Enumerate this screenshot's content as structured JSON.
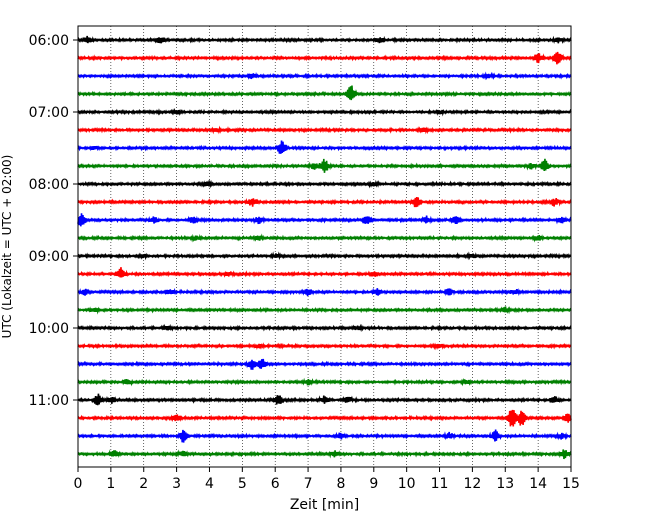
{
  "chart_data": {
    "type": "line",
    "title": "",
    "xlabel": "Zeit  [min]",
    "ylabel": "UTC (Lokalzeit = UTC + 02:00)",
    "xlim": [
      0,
      15
    ],
    "x_ticks": [
      "0",
      "1",
      "2",
      "3",
      "4",
      "5",
      "6",
      "7",
      "8",
      "9",
      "10",
      "11",
      "12",
      "13",
      "14",
      "15"
    ],
    "y_ticks": [
      {
        "label": "06:00",
        "trace": 0
      },
      {
        "label": "07:00",
        "trace": 4
      },
      {
        "label": "08:00",
        "trace": 8
      },
      {
        "label": "09:00",
        "trace": 12
      },
      {
        "label": "10:00",
        "trace": 16
      },
      {
        "label": "11:00",
        "trace": 20
      }
    ],
    "grid": {
      "x": true,
      "y": false,
      "style": "dotted"
    },
    "colors": [
      "#000000",
      "#ff0000",
      "#0000ff",
      "#008000"
    ],
    "series": [
      {
        "start": "06:00",
        "color": "#000000",
        "events": [
          [
            0.3,
            0.6
          ],
          [
            2.5,
            0.5
          ],
          [
            9.2,
            0.5
          ],
          [
            14.6,
            0.5
          ]
        ]
      },
      {
        "start": "06:15",
        "color": "#ff0000",
        "events": [
          [
            14.0,
            0.8
          ],
          [
            14.6,
            1.1
          ]
        ]
      },
      {
        "start": "06:30",
        "color": "#0000ff",
        "events": [
          [
            5.3,
            0.4
          ],
          [
            12.5,
            0.3
          ]
        ]
      },
      {
        "start": "06:45",
        "color": "#008000",
        "events": [
          [
            8.3,
            1.6
          ]
        ]
      },
      {
        "start": "07:00",
        "color": "#000000",
        "events": [
          [
            3.0,
            0.3
          ],
          [
            11.0,
            0.3
          ]
        ]
      },
      {
        "start": "07:15",
        "color": "#ff0000",
        "events": [
          [
            4.2,
            0.3
          ],
          [
            10.5,
            0.3
          ]
        ]
      },
      {
        "start": "07:30",
        "color": "#0000ff",
        "events": [
          [
            6.2,
            1.3
          ],
          [
            0.5,
            0.3
          ]
        ]
      },
      {
        "start": "07:45",
        "color": "#008000",
        "events": [
          [
            7.2,
            0.6
          ],
          [
            7.5,
            1.3
          ],
          [
            14.2,
            1.1
          ],
          [
            13.8,
            0.5
          ]
        ]
      },
      {
        "start": "08:00",
        "color": "#000000",
        "events": [
          [
            3.9,
            0.3
          ],
          [
            9.0,
            0.3
          ]
        ]
      },
      {
        "start": "08:15",
        "color": "#ff0000",
        "events": [
          [
            5.3,
            0.8
          ],
          [
            10.3,
            1.0
          ],
          [
            14.5,
            0.7
          ]
        ]
      },
      {
        "start": "08:30",
        "color": "#0000ff",
        "events": [
          [
            0.1,
            1.1
          ],
          [
            2.3,
            0.6
          ],
          [
            3.5,
            0.7
          ],
          [
            5.5,
            0.7
          ],
          [
            8.8,
            0.8
          ],
          [
            11.5,
            0.8
          ],
          [
            10.6,
            0.6
          ],
          [
            14.7,
            0.6
          ]
        ]
      },
      {
        "start": "08:45",
        "color": "#008000",
        "events": [
          [
            3.6,
            0.4
          ],
          [
            5.5,
            0.4
          ],
          [
            14.0,
            0.5
          ]
        ]
      },
      {
        "start": "09:00",
        "color": "#000000",
        "events": [
          [
            2.0,
            0.3
          ],
          [
            6.0,
            0.3
          ],
          [
            12.0,
            0.3
          ]
        ]
      },
      {
        "start": "09:15",
        "color": "#ff0000",
        "events": [
          [
            1.3,
            1.0
          ],
          [
            4.6,
            0.4
          ],
          [
            9.0,
            0.4
          ]
        ]
      },
      {
        "start": "09:30",
        "color": "#0000ff",
        "events": [
          [
            0.2,
            0.6
          ],
          [
            2.8,
            0.5
          ],
          [
            7.0,
            0.6
          ],
          [
            9.1,
            0.6
          ],
          [
            11.3,
            0.6
          ],
          [
            13.3,
            0.5
          ]
        ]
      },
      {
        "start": "09:45",
        "color": "#008000",
        "events": [
          [
            0.5,
            0.4
          ],
          [
            13.0,
            0.4
          ]
        ]
      },
      {
        "start": "10:00",
        "color": "#000000",
        "events": [
          [
            2.7,
            0.3
          ],
          [
            8.5,
            0.3
          ]
        ]
      },
      {
        "start": "10:15",
        "color": "#ff0000",
        "events": [
          [
            5.5,
            0.3
          ],
          [
            11.0,
            0.3
          ]
        ]
      },
      {
        "start": "10:30",
        "color": "#0000ff",
        "events": [
          [
            5.3,
            1.0
          ],
          [
            5.6,
            0.9
          ]
        ]
      },
      {
        "start": "10:45",
        "color": "#008000",
        "events": [
          [
            1.5,
            0.5
          ],
          [
            7.0,
            0.5
          ],
          [
            11.8,
            0.4
          ]
        ]
      },
      {
        "start": "11:00",
        "color": "#000000",
        "events": [
          [
            0.6,
            1.1
          ],
          [
            1.0,
            0.6
          ],
          [
            6.1,
            1.0
          ],
          [
            7.5,
            0.7
          ],
          [
            8.2,
            0.6
          ],
          [
            14.5,
            0.6
          ]
        ]
      },
      {
        "start": "11:15",
        "color": "#ff0000",
        "events": [
          [
            3.0,
            0.6
          ],
          [
            13.2,
            1.9
          ],
          [
            13.5,
            1.5
          ],
          [
            14.9,
            0.9
          ]
        ]
      },
      {
        "start": "11:30",
        "color": "#0000ff",
        "events": [
          [
            3.2,
            1.1
          ],
          [
            8.0,
            0.6
          ],
          [
            11.3,
            0.6
          ],
          [
            12.7,
            1.0
          ],
          [
            14.7,
            0.5
          ]
        ]
      },
      {
        "start": "11:45",
        "color": "#008000",
        "events": [
          [
            1.1,
            0.6
          ],
          [
            3.2,
            0.5
          ],
          [
            7.8,
            0.5
          ],
          [
            14.8,
            0.8
          ]
        ]
      }
    ]
  }
}
